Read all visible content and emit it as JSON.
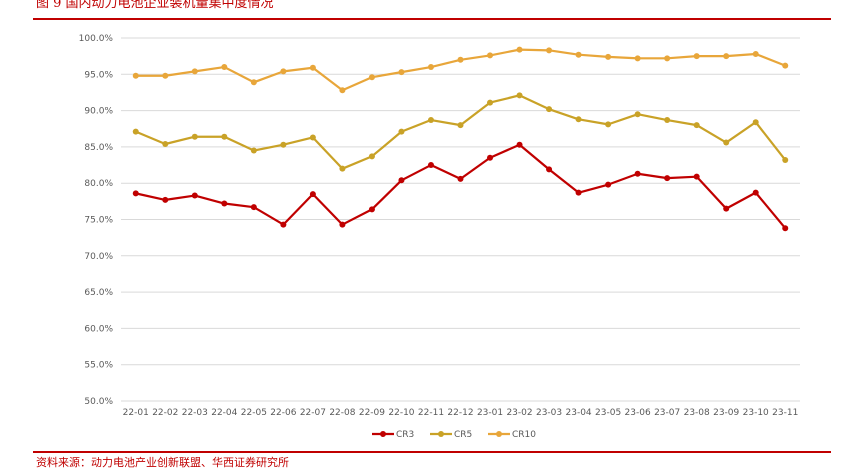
{
  "figure": {
    "title": "图 9 国内动力电池企业装机量集中度情况",
    "source": "资料来源：动力电池产业创新联盟、华西证券研究所"
  },
  "chart_data": {
    "type": "line",
    "title": "",
    "xlabel": "",
    "ylabel": "",
    "ylim": [
      50,
      100
    ],
    "yticks": [
      "100.0%",
      "95.0%",
      "90.0%",
      "85.0%",
      "80.0%",
      "75.0%",
      "70.0%",
      "65.0%",
      "60.0%",
      "55.0%",
      "50.0%"
    ],
    "grid": true,
    "legend_position": "bottom-center",
    "categories": [
      "22-01",
      "22-02",
      "22-03",
      "22-04",
      "22-05",
      "22-06",
      "22-07",
      "22-08",
      "22-09",
      "22-10",
      "22-11",
      "22-12",
      "23-01",
      "23-02",
      "23-03",
      "23-04",
      "23-05",
      "23-06",
      "23-07",
      "23-08",
      "23-09",
      "23-10",
      "23-11"
    ],
    "series": [
      {
        "name": "CR3",
        "color": "#c00000",
        "values": [
          78.6,
          77.7,
          78.3,
          77.2,
          76.7,
          74.3,
          78.5,
          74.3,
          76.4,
          80.4,
          82.5,
          80.6,
          83.5,
          85.3,
          81.9,
          78.7,
          79.8,
          81.3,
          80.7,
          80.9,
          76.5,
          78.7,
          73.8
        ]
      },
      {
        "name": "CR5",
        "color": "#c9a227",
        "values": [
          87.1,
          85.4,
          86.4,
          86.4,
          84.5,
          85.3,
          86.3,
          82.0,
          83.7,
          87.1,
          88.7,
          88.0,
          91.1,
          92.1,
          90.2,
          88.8,
          88.1,
          89.5,
          88.7,
          88.0,
          85.6,
          88.4,
          83.2
        ]
      },
      {
        "name": "CR10",
        "color": "#e8a63a",
        "values": [
          94.8,
          94.8,
          95.4,
          96.0,
          93.9,
          95.4,
          95.9,
          92.8,
          94.6,
          95.3,
          96.0,
          97.0,
          97.6,
          98.4,
          98.3,
          97.7,
          97.4,
          97.2,
          97.2,
          97.5,
          97.5,
          97.8,
          96.2
        ]
      }
    ]
  }
}
